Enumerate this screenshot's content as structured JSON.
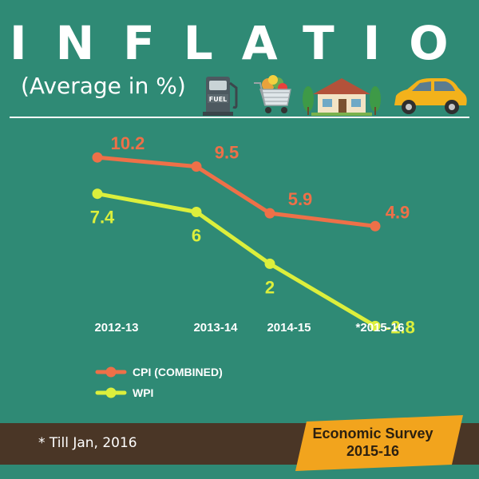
{
  "header": {
    "title": "INFLATION",
    "subtitle": "(Average in %)",
    "icons": [
      "fuel-pump-icon",
      "grocery-cart-icon",
      "house-icon",
      "car-icon"
    ],
    "fuel_label": "FUEL"
  },
  "chart_data": {
    "type": "line",
    "title": "INFLATION",
    "subtitle": "(Average in %)",
    "categories": [
      "2012-13",
      "2013-14",
      "2014-15",
      "*2015-16"
    ],
    "series": [
      {
        "name": "CPI (COMBINED)",
        "values": [
          10.2,
          9.5,
          5.9,
          4.9
        ],
        "labels": [
          "10.2",
          "9.5",
          "5.9",
          "4.9"
        ],
        "color": "#ee7048"
      },
      {
        "name": "WPI",
        "values": [
          7.4,
          6,
          2,
          -2.8
        ],
        "labels": [
          "7.4",
          "6",
          "2",
          "-2.8"
        ],
        "color": "#dcef3c"
      }
    ],
    "ylim": [
      -4.5,
      12
    ],
    "grid": false,
    "legend": "bottom-left"
  },
  "footer": {
    "footnote": "* Till Jan, 2016",
    "source_line1": "Economic Survey",
    "source_line2": "2015-16"
  },
  "colors": {
    "background": "#2f8a75",
    "cpi": "#ee7048",
    "wpi": "#dcef3c",
    "band": "#4a3626",
    "badge": "#f2a41d"
  }
}
